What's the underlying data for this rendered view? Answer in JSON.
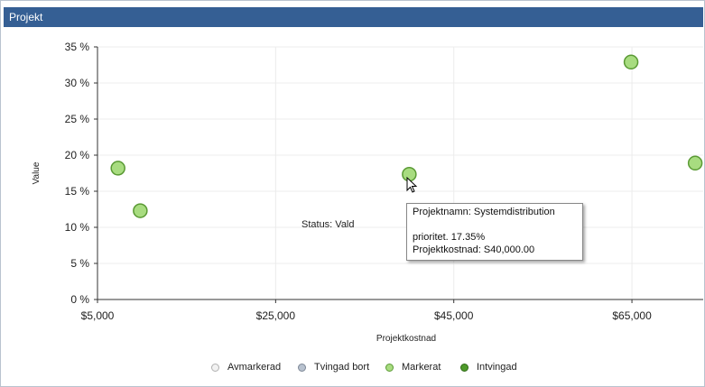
{
  "panel": {
    "title": "Projekt"
  },
  "status_text": "Status: Vald",
  "tooltip": {
    "line1": "Projektnamn: Systemdistribution",
    "line2": "",
    "line3": "prioritet. 17.35%",
    "line4": "Projektkostnad: S40,000.00"
  },
  "legend": [
    {
      "label": "Avmarkerad",
      "fill": "#f2f2f2",
      "stroke": "#b0b0b0"
    },
    {
      "label": "Tvingad bort",
      "fill": "#b8c2cf",
      "stroke": "#7d8796"
    },
    {
      "label": "Markerat",
      "fill": "#a8dc80",
      "stroke": "#5a9a34"
    },
    {
      "label": "Intvingad",
      "fill": "#4e9a2a",
      "stroke": "#2f6a16"
    }
  ],
  "chart_data": {
    "type": "scatter",
    "xlabel": "Projektkostnad",
    "ylabel": "Value",
    "xlim": [
      5000,
      73000
    ],
    "ylim": [
      0,
      35
    ],
    "x_ticks": [
      5000,
      25000,
      45000,
      65000
    ],
    "x_tick_labels": [
      "$5,000",
      "$25,000",
      "$45,000",
      "$65,000"
    ],
    "y_ticks": [
      0,
      5,
      10,
      15,
      20,
      25,
      30,
      35
    ],
    "y_tick_labels": [
      "0 %",
      "5 %",
      "10 %",
      "15 %",
      "20 %",
      "25 %",
      "30 %",
      "35 %"
    ],
    "grid": true,
    "series": [
      {
        "marker_color": "#a8dc80",
        "marker_edge": "#5a9a34",
        "points": [
          {
            "x": 7300,
            "y": 18.2
          },
          {
            "x": 9800,
            "y": 12.3
          },
          {
            "x": 40000,
            "y": 17.35
          },
          {
            "x": 64900,
            "y": 32.9
          },
          {
            "x": 72100,
            "y": 18.9
          }
        ]
      }
    ]
  }
}
